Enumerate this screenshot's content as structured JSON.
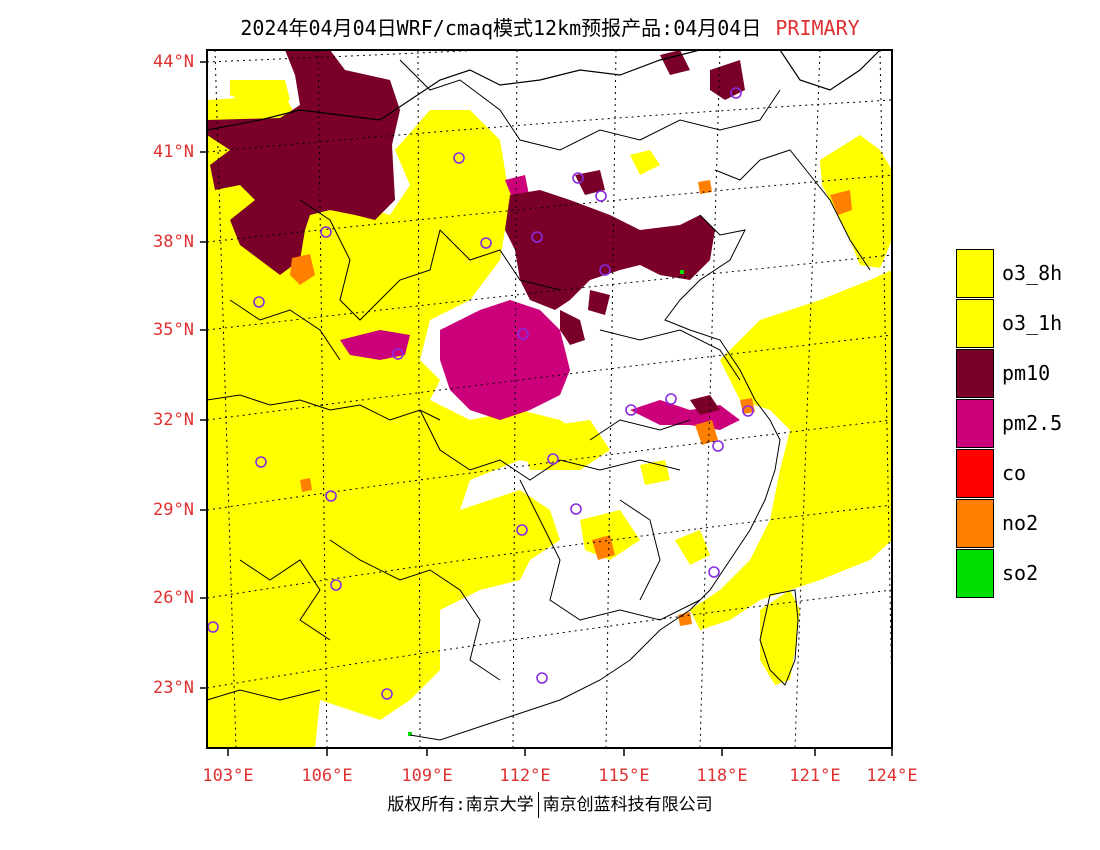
{
  "title": {
    "text": "2024年04月04日WRF/cmaq模式12km预报产品:04月04日",
    "tag": "PRIMARY",
    "tag_color": "#e03030"
  },
  "axes": {
    "lat_labels": [
      "44°N",
      "41°N",
      "38°N",
      "35°N",
      "32°N",
      "29°N",
      "26°N",
      "23°N"
    ],
    "lon_labels": [
      "103°E",
      "106°E",
      "109°E",
      "112°E",
      "115°E",
      "118°E",
      "121°E",
      "124°E"
    ],
    "label_color": "#e03030"
  },
  "legend": [
    {
      "label": "o3_8h",
      "color": "#ffff00"
    },
    {
      "label": "o3_1h",
      "color": "#ffff00"
    },
    {
      "label": "pm10",
      "color": "#7a0029"
    },
    {
      "label": "pm2.5",
      "color": "#cc007a"
    },
    {
      "label": "co",
      "color": "#ff0000"
    },
    {
      "label": "no2",
      "color": "#ff7f00"
    },
    {
      "label": "so2",
      "color": "#00dd00"
    }
  ],
  "footer": {
    "left": "版权所有:南京大学",
    "right": "南京创蓝科技有限公司"
  }
}
